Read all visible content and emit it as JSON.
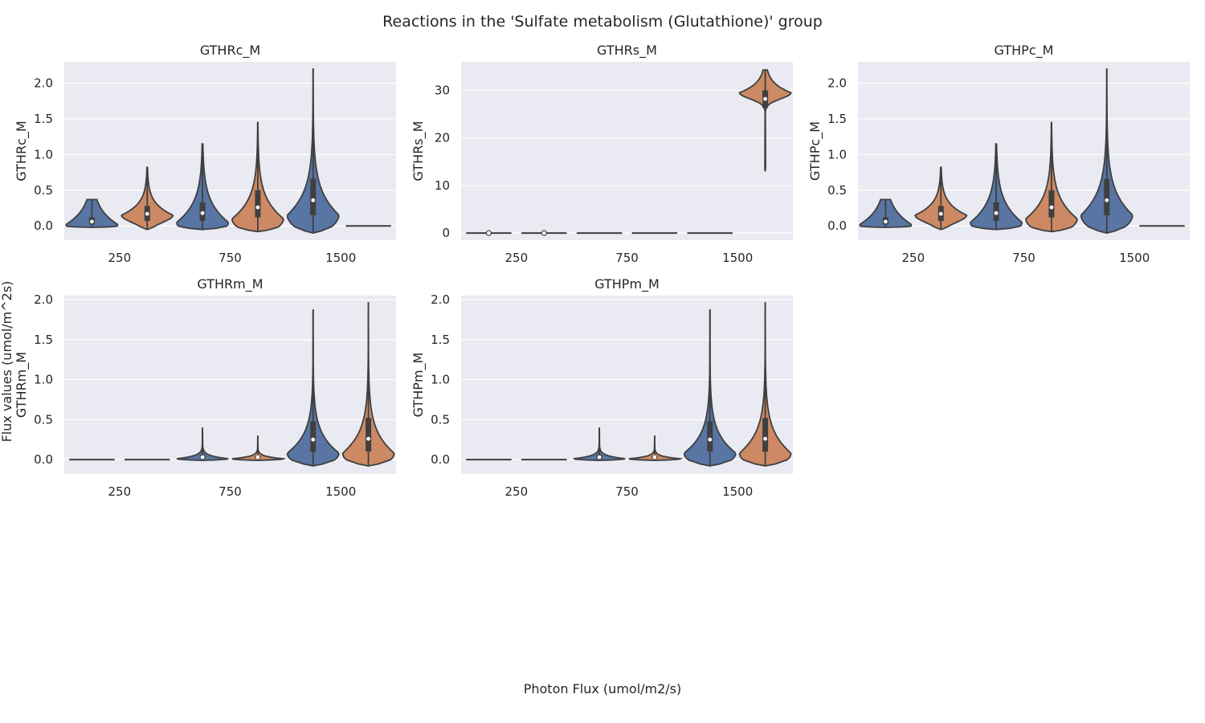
{
  "figure": {
    "title": "Reactions in the 'Sulfate metabolism (Glutathione)' group",
    "supxlabel": "Photon Flux (umol/m2/s)",
    "supylabel": "Flux values (umol/m^2s)"
  },
  "colors": {
    "series_a": "#5875a4",
    "series_b": "#cc8963",
    "background": "#eaeaf2",
    "grid": "#ffffff",
    "outline": "#3f3f3f"
  },
  "chart_data": [
    {
      "type": "violin",
      "title": "GTHRc_M",
      "ylabel": "GTHRc_M",
      "xlabel": "",
      "categories": [
        "250",
        "750",
        "1500"
      ],
      "ylim": [
        -0.2,
        2.3
      ],
      "yticks": [
        0.0,
        0.5,
        1.0,
        1.5,
        2.0
      ],
      "ytick_labels": [
        "0.0",
        "0.5",
        "1.0",
        "1.5",
        "2.0"
      ],
      "grid": true,
      "violins": [
        {
          "category": "250",
          "series": 0,
          "min": -0.02,
          "max": 0.37,
          "q1": 0.02,
          "median": 0.06,
          "q3": 0.12,
          "mode": 0.02,
          "spread": 0.3
        },
        {
          "category": "250",
          "series": 1,
          "min": -0.05,
          "max": 0.82,
          "q1": 0.07,
          "median": 0.17,
          "q3": 0.28,
          "mode": 0.15,
          "spread": 0.22
        },
        {
          "category": "750",
          "series": 0,
          "min": -0.05,
          "max": 1.15,
          "q1": 0.07,
          "median": 0.18,
          "q3": 0.33,
          "mode": 0.05,
          "spread": 0.38
        },
        {
          "category": "750",
          "series": 1,
          "min": -0.08,
          "max": 1.45,
          "q1": 0.12,
          "median": 0.26,
          "q3": 0.5,
          "mode": 0.1,
          "spread": 0.38
        },
        {
          "category": "1500",
          "series": 0,
          "min": -0.1,
          "max": 2.2,
          "q1": 0.15,
          "median": 0.36,
          "q3": 0.66,
          "mode": 0.15,
          "spread": 0.45
        },
        {
          "category": "1500",
          "series": 1,
          "min": 0.0,
          "max": 0.0,
          "flat": true
        }
      ]
    },
    {
      "type": "violin",
      "title": "GTHRs_M",
      "ylabel": "GTHRs_M",
      "xlabel": "",
      "categories": [
        "250",
        "750",
        "1500"
      ],
      "ylim": [
        -1.5,
        36
      ],
      "yticks": [
        0,
        10,
        20,
        30
      ],
      "ytick_labels": [
        "0",
        "10",
        "20",
        "30"
      ],
      "grid": true,
      "violins": [
        {
          "category": "250",
          "series": 0,
          "min": 0.0,
          "max": 0.0,
          "flat": true,
          "median": 0.0
        },
        {
          "category": "250",
          "series": 1,
          "min": 0.0,
          "max": 0.0,
          "flat": true,
          "median": 0.0
        },
        {
          "category": "750",
          "series": 0,
          "min": 0.0,
          "max": 0.0,
          "flat": true
        },
        {
          "category": "750",
          "series": 1,
          "min": 0.0,
          "max": 0.0,
          "flat": true
        },
        {
          "category": "1500",
          "series": 0,
          "min": 0.0,
          "max": 0.0,
          "flat": true
        },
        {
          "category": "1500",
          "series": 1,
          "min": 13.0,
          "max": 34.3,
          "q1": 26.3,
          "median": 28.2,
          "q3": 30.0,
          "mode": 29.5,
          "spread": 2.8
        }
      ]
    },
    {
      "type": "violin",
      "title": "GTHPc_M",
      "ylabel": "GTHPc_M",
      "xlabel": "",
      "categories": [
        "250",
        "750",
        "1500"
      ],
      "ylim": [
        -0.2,
        2.3
      ],
      "yticks": [
        0.0,
        0.5,
        1.0,
        1.5,
        2.0
      ],
      "ytick_labels": [
        "0.0",
        "0.5",
        "1.0",
        "1.5",
        "2.0"
      ],
      "grid": true,
      "violins": [
        {
          "category": "250",
          "series": 0,
          "min": -0.02,
          "max": 0.37,
          "q1": 0.02,
          "median": 0.06,
          "q3": 0.12,
          "mode": 0.02,
          "spread": 0.3
        },
        {
          "category": "250",
          "series": 1,
          "min": -0.05,
          "max": 0.82,
          "q1": 0.07,
          "median": 0.17,
          "q3": 0.28,
          "mode": 0.15,
          "spread": 0.22
        },
        {
          "category": "750",
          "series": 0,
          "min": -0.05,
          "max": 1.15,
          "q1": 0.07,
          "median": 0.18,
          "q3": 0.33,
          "mode": 0.05,
          "spread": 0.38
        },
        {
          "category": "750",
          "series": 1,
          "min": -0.08,
          "max": 1.45,
          "q1": 0.12,
          "median": 0.26,
          "q3": 0.5,
          "mode": 0.1,
          "spread": 0.38
        },
        {
          "category": "1500",
          "series": 0,
          "min": -0.1,
          "max": 2.2,
          "q1": 0.15,
          "median": 0.36,
          "q3": 0.66,
          "mode": 0.15,
          "spread": 0.45
        },
        {
          "category": "1500",
          "series": 1,
          "min": 0.0,
          "max": 0.0,
          "flat": true
        }
      ]
    },
    {
      "type": "violin",
      "title": "GTHRm_M",
      "ylabel": "GTHRm_M",
      "xlabel": "",
      "categories": [
        "250",
        "750",
        "1500"
      ],
      "ylim": [
        -0.18,
        2.05
      ],
      "yticks": [
        0.0,
        0.5,
        1.0,
        1.5,
        2.0
      ],
      "ytick_labels": [
        "0.0",
        "0.5",
        "1.0",
        "1.5",
        "2.0"
      ],
      "grid": true,
      "violins": [
        {
          "category": "250",
          "series": 0,
          "min": 0.0,
          "max": 0.0,
          "flat": true
        },
        {
          "category": "250",
          "series": 1,
          "min": 0.0,
          "max": 0.0,
          "flat": true
        },
        {
          "category": "750",
          "series": 0,
          "min": -0.01,
          "max": 0.4,
          "q1": 0.01,
          "median": 0.03,
          "q3": 0.06,
          "mode": 0.01,
          "spread": 0.05
        },
        {
          "category": "750",
          "series": 1,
          "min": -0.01,
          "max": 0.3,
          "q1": 0.01,
          "median": 0.03,
          "q3": 0.05,
          "mode": 0.01,
          "spread": 0.04
        },
        {
          "category": "1500",
          "series": 0,
          "min": -0.08,
          "max": 1.87,
          "q1": 0.1,
          "median": 0.25,
          "q3": 0.48,
          "mode": 0.08,
          "spread": 0.33
        },
        {
          "category": "1500",
          "series": 1,
          "min": -0.08,
          "max": 1.97,
          "q1": 0.1,
          "median": 0.26,
          "q3": 0.52,
          "mode": 0.08,
          "spread": 0.36
        }
      ]
    },
    {
      "type": "violin",
      "title": "GTHPm_M",
      "ylabel": "GTHPm_M",
      "xlabel": "",
      "categories": [
        "250",
        "750",
        "1500"
      ],
      "ylim": [
        -0.18,
        2.05
      ],
      "yticks": [
        0.0,
        0.5,
        1.0,
        1.5,
        2.0
      ],
      "ytick_labels": [
        "0.0",
        "0.5",
        "1.0",
        "1.5",
        "2.0"
      ],
      "grid": true,
      "violins": [
        {
          "category": "250",
          "series": 0,
          "min": 0.0,
          "max": 0.0,
          "flat": true
        },
        {
          "category": "250",
          "series": 1,
          "min": 0.0,
          "max": 0.0,
          "flat": true
        },
        {
          "category": "750",
          "series": 0,
          "min": -0.01,
          "max": 0.4,
          "q1": 0.01,
          "median": 0.03,
          "q3": 0.06,
          "mode": 0.01,
          "spread": 0.05
        },
        {
          "category": "750",
          "series": 1,
          "min": -0.01,
          "max": 0.3,
          "q1": 0.01,
          "median": 0.03,
          "q3": 0.05,
          "mode": 0.01,
          "spread": 0.04
        },
        {
          "category": "1500",
          "series": 0,
          "min": -0.08,
          "max": 1.87,
          "q1": 0.1,
          "median": 0.25,
          "q3": 0.48,
          "mode": 0.08,
          "spread": 0.33
        },
        {
          "category": "1500",
          "series": 1,
          "min": -0.08,
          "max": 1.97,
          "q1": 0.1,
          "median": 0.26,
          "q3": 0.52,
          "mode": 0.08,
          "spread": 0.36
        }
      ]
    }
  ]
}
